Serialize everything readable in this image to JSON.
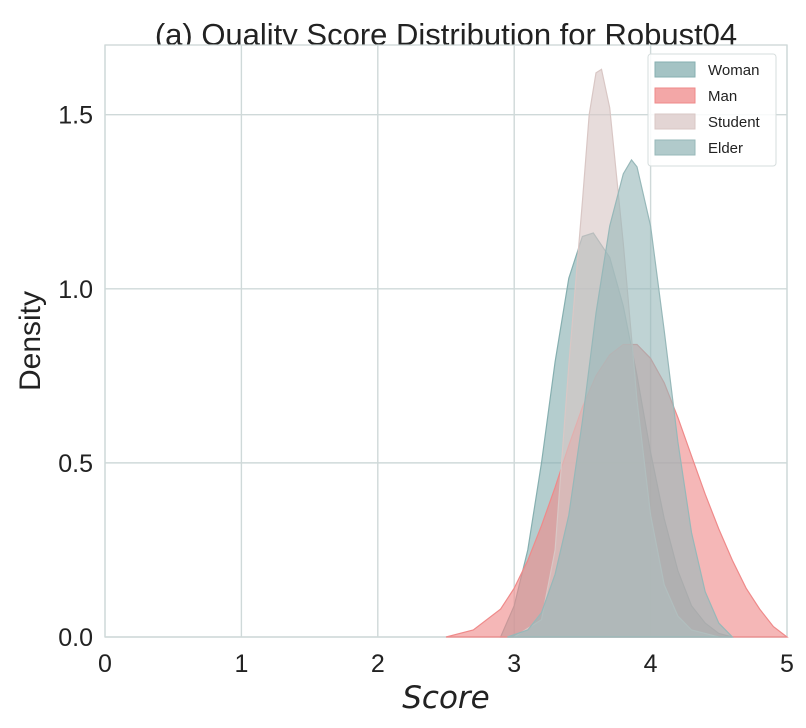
{
  "chart_data": {
    "type": "area",
    "title": "(a) Quality Score Distribution for Robust04",
    "xlabel": "Score",
    "ylabel": "Density",
    "xlim": [
      0,
      5
    ],
    "ylim": [
      0,
      1.7
    ],
    "xticks": [
      "0",
      "1",
      "2",
      "3",
      "4",
      "5"
    ],
    "yticks": [
      "0.0",
      "0.5",
      "1.0",
      "1.5"
    ],
    "grid": true,
    "legend_position": "top-right",
    "series": [
      {
        "name": "Woman",
        "color": "#86afb0",
        "x": [
          2.9,
          3.0,
          3.1,
          3.2,
          3.3,
          3.4,
          3.5,
          3.58,
          3.7,
          3.8,
          3.9,
          4.0,
          4.1,
          4.2,
          4.3,
          4.4,
          4.5,
          4.6
        ],
        "y": [
          0.0,
          0.09,
          0.25,
          0.5,
          0.79,
          1.03,
          1.15,
          1.16,
          1.09,
          0.95,
          0.75,
          0.53,
          0.34,
          0.19,
          0.09,
          0.04,
          0.01,
          0.0
        ]
      },
      {
        "name": "Man",
        "color": "#ef8a8a",
        "x": [
          2.5,
          2.7,
          2.9,
          3.0,
          3.1,
          3.2,
          3.3,
          3.4,
          3.5,
          3.6,
          3.7,
          3.8,
          3.9,
          4.0,
          4.1,
          4.2,
          4.3,
          4.4,
          4.5,
          4.6,
          4.7,
          4.8,
          4.9,
          5.0
        ],
        "y": [
          0.0,
          0.02,
          0.08,
          0.14,
          0.22,
          0.32,
          0.43,
          0.55,
          0.66,
          0.75,
          0.81,
          0.84,
          0.84,
          0.8,
          0.73,
          0.63,
          0.52,
          0.41,
          0.31,
          0.22,
          0.14,
          0.08,
          0.03,
          0.0
        ]
      },
      {
        "name": "Student",
        "color": "#d9c7c5",
        "x": [
          3.0,
          3.2,
          3.3,
          3.4,
          3.5,
          3.55,
          3.6,
          3.64,
          3.7,
          3.8,
          3.9,
          4.0,
          4.1,
          4.2,
          4.3,
          4.4,
          4.5
        ],
        "y": [
          0.0,
          0.05,
          0.25,
          0.78,
          1.25,
          1.5,
          1.62,
          1.63,
          1.52,
          1.13,
          0.68,
          0.35,
          0.15,
          0.06,
          0.02,
          0.01,
          0.0
        ]
      },
      {
        "name": "Elder",
        "color": "#97b8b9",
        "x": [
          2.95,
          3.1,
          3.2,
          3.3,
          3.4,
          3.5,
          3.6,
          3.7,
          3.8,
          3.86,
          3.9,
          4.0,
          4.1,
          4.2,
          4.3,
          4.4,
          4.5,
          4.6
        ],
        "y": [
          0.0,
          0.02,
          0.07,
          0.18,
          0.35,
          0.62,
          0.93,
          1.18,
          1.33,
          1.37,
          1.35,
          1.18,
          0.88,
          0.56,
          0.3,
          0.13,
          0.04,
          0.0
        ]
      }
    ]
  }
}
